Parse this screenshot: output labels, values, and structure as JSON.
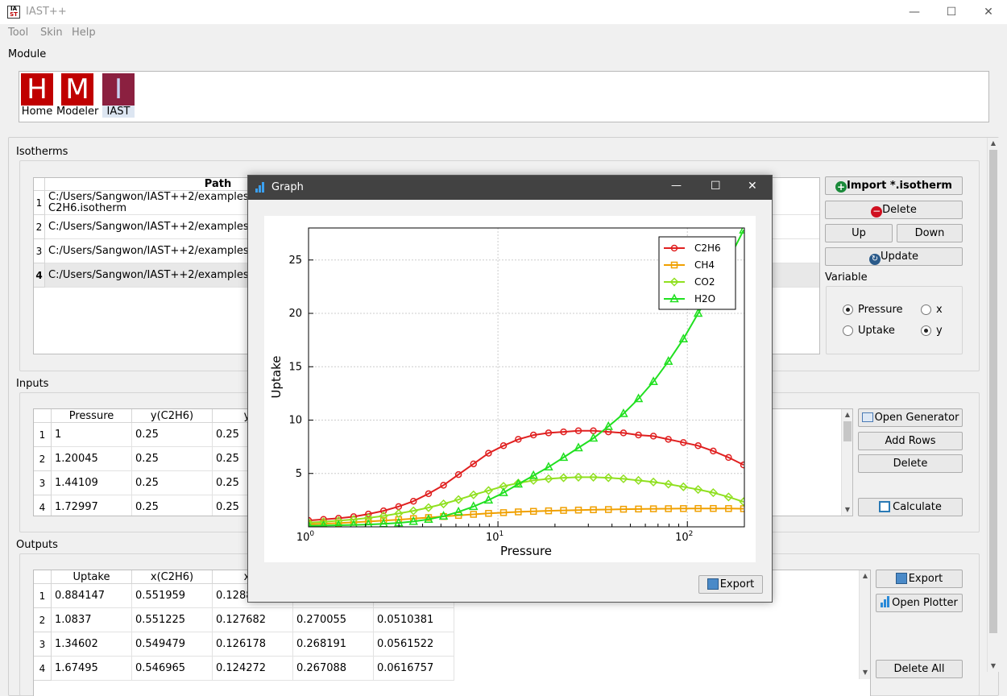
{
  "window": {
    "title": "IAST++",
    "minimize": "—",
    "maximize": "☐",
    "close": "✕"
  },
  "menu": [
    {
      "label": "Tool"
    },
    {
      "label": "Skin"
    },
    {
      "label": "Help"
    }
  ],
  "module": {
    "title": "Module",
    "items": [
      {
        "letter": "H",
        "label": "Home",
        "color": "#c00000"
      },
      {
        "letter": "M",
        "label": "Modeler",
        "color": "#c00000"
      },
      {
        "letter": "I",
        "label": "IAST",
        "color": "#8b2040"
      }
    ]
  },
  "isotherms": {
    "title": "Isotherms",
    "header": "Path",
    "rows": [
      [
        "1",
        "C:/Users/Sangwon/IAST++2/examples/",
        "C2H6.isotherm"
      ],
      [
        "2",
        "C:/Users/Sangwon/IAST++2/examples/",
        ""
      ],
      [
        "3",
        "C:/Users/Sangwon/IAST++2/examples/",
        ""
      ],
      [
        "4",
        "C:/Users/Sangwon/IAST++2/examples/",
        ""
      ]
    ],
    "import": "Import *.isotherm",
    "delete": "Delete",
    "up": "Up",
    "down": "Down",
    "update": "Update",
    "variable": "Variable",
    "pressure": "Pressure",
    "uptake": "Uptake",
    "x": "x",
    "y": "y"
  },
  "inputs": {
    "title": "Inputs",
    "headers": [
      "Pressure",
      "y(C2H6)",
      "y(C"
    ],
    "rows": [
      [
        "1",
        "1",
        "0.25",
        "0.25"
      ],
      [
        "2",
        "1.20045",
        "0.25",
        "0.25"
      ],
      [
        "3",
        "1.44109",
        "0.25",
        "0.25"
      ],
      [
        "4",
        "1.72997",
        "0.25",
        "0.25"
      ]
    ],
    "open_generator": "Open Generator",
    "add_rows": "Add Rows",
    "delete": "Delete",
    "calculate": "Calculate"
  },
  "outputs": {
    "title": "Outputs",
    "headers": [
      "Uptake",
      "x(C2H6)",
      "x(C"
    ],
    "rows": [
      [
        "1",
        "0.884147",
        "0.551959",
        "0.1288",
        "",
        ""
      ],
      [
        "2",
        "1.0837",
        "0.551225",
        "0.127682",
        "0.270055",
        "0.0510381"
      ],
      [
        "3",
        "1.34602",
        "0.549479",
        "0.126178",
        "0.268191",
        "0.0561522"
      ],
      [
        "4",
        "1.67495",
        "0.546965",
        "0.124272",
        "0.267088",
        "0.0616757"
      ]
    ],
    "export": "Export",
    "open_plotter": "Open Plotter",
    "delete_all": "Delete All"
  },
  "graph": {
    "title": "Graph",
    "export": "Export"
  },
  "chart_data": {
    "type": "line",
    "xscale": "log",
    "xlabel": "Pressure",
    "ylabel": "Uptake",
    "xlim": [
      1,
      200
    ],
    "ylim": [
      0,
      28
    ],
    "xticks": [
      "10^0",
      "10^1",
      "10^2"
    ],
    "yticks": [
      5,
      10,
      15,
      20,
      25
    ],
    "grid": true,
    "legend": "top-right",
    "x": [
      1,
      1.2,
      1.44,
      1.73,
      2.07,
      2.49,
      2.99,
      3.58,
      4.3,
      5.16,
      6.19,
      7.43,
      8.92,
      10.7,
      12.8,
      15.4,
      18.5,
      22.2,
      26.6,
      31.9,
      38.3,
      46,
      55.2,
      66.2,
      79.4,
      95.3,
      114,
      137,
      165,
      198
    ],
    "series": [
      {
        "name": "C2H6",
        "color": "#e02020",
        "marker": "circle",
        "values": [
          0.6,
          0.7,
          0.8,
          0.95,
          1.2,
          1.5,
          1.9,
          2.4,
          3.1,
          3.9,
          4.9,
          5.9,
          6.9,
          7.6,
          8.2,
          8.6,
          8.8,
          8.9,
          9.0,
          9.0,
          8.9,
          8.8,
          8.6,
          8.5,
          8.2,
          7.9,
          7.6,
          7.1,
          6.5,
          5.8
        ]
      },
      {
        "name": "CH4",
        "color": "#f0a000",
        "marker": "square",
        "values": [
          0.25,
          0.3,
          0.35,
          0.42,
          0.5,
          0.58,
          0.67,
          0.77,
          0.87,
          0.97,
          1.07,
          1.17,
          1.26,
          1.33,
          1.4,
          1.45,
          1.5,
          1.54,
          1.57,
          1.6,
          1.62,
          1.65,
          1.67,
          1.69,
          1.7,
          1.71,
          1.72,
          1.72,
          1.71,
          1.7
        ]
      },
      {
        "name": "CO2",
        "color": "#90e020",
        "marker": "diamond",
        "values": [
          0.4,
          0.47,
          0.57,
          0.69,
          0.84,
          1.02,
          1.25,
          1.5,
          1.8,
          2.15,
          2.55,
          3.0,
          3.4,
          3.8,
          4.1,
          4.35,
          4.5,
          4.6,
          4.65,
          4.65,
          4.6,
          4.5,
          4.35,
          4.2,
          4.0,
          3.75,
          3.5,
          3.2,
          2.8,
          2.35
        ]
      },
      {
        "name": "H2O",
        "color": "#20e020",
        "marker": "triangle",
        "values": [
          0.1,
          0.12,
          0.15,
          0.18,
          0.22,
          0.28,
          0.37,
          0.5,
          0.7,
          1.0,
          1.4,
          1.9,
          2.5,
          3.2,
          4.0,
          4.8,
          5.6,
          6.5,
          7.4,
          8.3,
          9.4,
          10.6,
          12.0,
          13.6,
          15.5,
          17.6,
          20.0,
          22.4,
          25.0,
          27.8
        ]
      }
    ]
  }
}
